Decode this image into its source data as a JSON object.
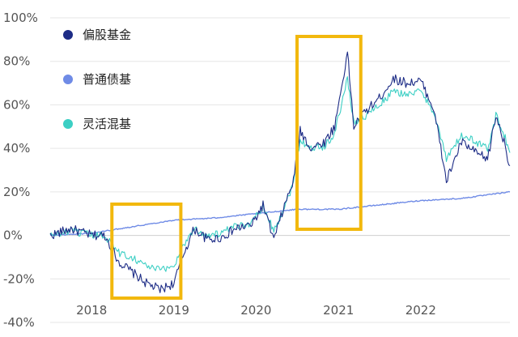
{
  "chart_data": {
    "type": "line",
    "title": "",
    "xlabel": "",
    "ylabel": "",
    "x_ticks": [
      "2018",
      "2019",
      "2020",
      "2021",
      "2022"
    ],
    "y_ticks": [
      "100%",
      "80%",
      "60%",
      "40%",
      "20%",
      "0%",
      "-20%",
      "-40%"
    ],
    "ylim": [
      -40,
      100
    ],
    "xlim": [
      "2017-07-01",
      "2023-02-01"
    ],
    "grid": "horizontal",
    "legend_position": "top-left",
    "series": [
      {
        "name": "偏股基金",
        "color": "#1d2c86",
        "points": [
          [
            "2017-07-01",
            0
          ],
          [
            "2017-10-01",
            3
          ],
          [
            "2018-01-01",
            0
          ],
          [
            "2018-03-01",
            0
          ],
          [
            "2018-05-01",
            -12
          ],
          [
            "2018-07-01",
            -17
          ],
          [
            "2018-09-01",
            -22
          ],
          [
            "2018-11-01",
            -25
          ],
          [
            "2019-01-01",
            -22
          ],
          [
            "2019-02-15",
            -8
          ],
          [
            "2019-04-01",
            3
          ],
          [
            "2019-06-01",
            -2
          ],
          [
            "2019-08-01",
            -1
          ],
          [
            "2019-10-01",
            3
          ],
          [
            "2019-12-15",
            5
          ],
          [
            "2020-02-01",
            14
          ],
          [
            "2020-03-20",
            -2
          ],
          [
            "2020-05-01",
            12
          ],
          [
            "2020-06-15",
            25
          ],
          [
            "2020-07-15",
            48
          ],
          [
            "2020-09-01",
            40
          ],
          [
            "2020-11-01",
            43
          ],
          [
            "2020-12-15",
            50
          ],
          [
            "2021-02-10",
            84
          ],
          [
            "2021-03-10",
            50
          ],
          [
            "2021-05-01",
            57
          ],
          [
            "2021-07-01",
            63
          ],
          [
            "2021-09-01",
            72
          ],
          [
            "2021-11-01",
            70
          ],
          [
            "2022-01-01",
            71
          ],
          [
            "2022-03-01",
            58
          ],
          [
            "2022-04-25",
            25
          ],
          [
            "2022-07-01",
            43
          ],
          [
            "2022-09-01",
            38
          ],
          [
            "2022-10-25",
            35
          ],
          [
            "2022-12-01",
            55
          ],
          [
            "2023-01-01",
            45
          ],
          [
            "2023-02-01",
            32
          ]
        ]
      },
      {
        "name": "普通债基",
        "color": "#6f8be6",
        "points": [
          [
            "2017-07-01",
            0
          ],
          [
            "2018-01-01",
            1
          ],
          [
            "2018-07-01",
            4
          ],
          [
            "2019-01-01",
            7
          ],
          [
            "2019-07-01",
            8
          ],
          [
            "2020-01-01",
            10
          ],
          [
            "2020-07-01",
            12
          ],
          [
            "2021-01-01",
            12
          ],
          [
            "2021-07-01",
            14
          ],
          [
            "2022-01-01",
            16
          ],
          [
            "2022-07-01",
            17
          ],
          [
            "2023-02-01",
            20
          ]
        ]
      },
      {
        "name": "灵活混基",
        "color": "#3ccfc4",
        "points": [
          [
            "2017-07-01",
            0
          ],
          [
            "2017-10-01",
            2
          ],
          [
            "2018-01-01",
            0
          ],
          [
            "2018-03-01",
            0
          ],
          [
            "2018-05-01",
            -8
          ],
          [
            "2018-07-01",
            -10
          ],
          [
            "2018-09-01",
            -14
          ],
          [
            "2018-11-01",
            -16
          ],
          [
            "2019-01-01",
            -14
          ],
          [
            "2019-02-15",
            -4
          ],
          [
            "2019-04-01",
            3
          ],
          [
            "2019-06-01",
            0
          ],
          [
            "2019-08-01",
            1
          ],
          [
            "2019-10-01",
            4
          ],
          [
            "2019-12-15",
            6
          ],
          [
            "2020-02-01",
            14
          ],
          [
            "2020-03-20",
            2
          ],
          [
            "2020-05-01",
            12
          ],
          [
            "2020-06-15",
            24
          ],
          [
            "2020-07-15",
            44
          ],
          [
            "2020-09-01",
            40
          ],
          [
            "2020-11-01",
            41
          ],
          [
            "2020-12-15",
            47
          ],
          [
            "2021-02-10",
            72
          ],
          [
            "2021-03-10",
            52
          ],
          [
            "2021-05-01",
            55
          ],
          [
            "2021-07-01",
            60
          ],
          [
            "2021-09-01",
            66
          ],
          [
            "2021-11-01",
            65
          ],
          [
            "2022-01-01",
            66
          ],
          [
            "2022-03-01",
            57
          ],
          [
            "2022-04-25",
            35
          ],
          [
            "2022-07-01",
            46
          ],
          [
            "2022-09-01",
            43
          ],
          [
            "2022-10-25",
            40
          ],
          [
            "2022-12-01",
            55
          ],
          [
            "2023-01-01",
            48
          ],
          [
            "2023-02-01",
            38
          ]
        ]
      }
    ],
    "highlight_periods": [
      {
        "start": "2018-04-01",
        "end": "2019-02-01",
        "color": "#f2b80d"
      },
      {
        "start": "2020-07-01",
        "end": "2021-04-10",
        "color": "#f2b80d"
      }
    ]
  }
}
